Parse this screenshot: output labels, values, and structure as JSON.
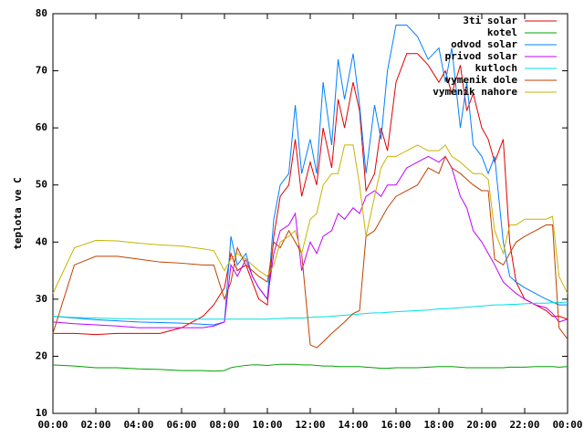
{
  "chart_data": {
    "type": "line",
    "ylabel": "teplota ve C",
    "x": [
      0,
      1,
      2,
      3,
      4,
      5,
      6,
      7,
      7.5,
      8,
      8.3,
      8.6,
      9,
      9.3,
      9.6,
      10,
      10.3,
      10.6,
      11,
      11.3,
      11.6,
      12,
      12.3,
      12.6,
      13,
      13.3,
      13.6,
      14,
      14.3,
      14.6,
      15,
      15.3,
      15.6,
      16,
      16.5,
      17,
      17.5,
      18,
      18.3,
      18.6,
      19,
      19.3,
      19.6,
      20,
      20.3,
      20.6,
      21,
      21.3,
      21.6,
      22,
      22.5,
      23,
      23.3,
      23.6,
      24
    ],
    "series": [
      {
        "name": "3ti solar",
        "color": "#e00000",
        "values": [
          24,
          24,
          23.8,
          24,
          24,
          24,
          25,
          27,
          29,
          32,
          38,
          35,
          36,
          33,
          30,
          29,
          41,
          48,
          50,
          58,
          48,
          54,
          50,
          60,
          53,
          65,
          60,
          68,
          63,
          49,
          52,
          60,
          56,
          68,
          73,
          73,
          71,
          68,
          70,
          66,
          71,
          63,
          66,
          60,
          58,
          54,
          58,
          40,
          33,
          30,
          29,
          28,
          27,
          27,
          26.5
        ]
      },
      {
        "name": "kotel",
        "color": "#00a000",
        "values": [
          18.5,
          18.3,
          18,
          18,
          17.8,
          17.7,
          17.5,
          17.5,
          17.4,
          17.5,
          18,
          18.2,
          18.4,
          18.5,
          18.5,
          18.4,
          18.5,
          18.6,
          18.6,
          18.6,
          18.5,
          18.5,
          18.4,
          18.3,
          18.3,
          18.2,
          18.2,
          18.2,
          18.2,
          18.1,
          18,
          17.9,
          17.9,
          18,
          18,
          18,
          18.1,
          18.2,
          18.2,
          18.2,
          18.1,
          18,
          18,
          18,
          18,
          18,
          18,
          18.1,
          18.1,
          18.1,
          18.2,
          18.2,
          18.2,
          18.1,
          18.2
        ]
      },
      {
        "name": "odvod solar",
        "color": "#0080ff",
        "values": [
          27,
          26.7,
          26.4,
          26.2,
          26,
          25.9,
          25.8,
          25.6,
          25.5,
          26,
          41,
          36,
          38,
          34,
          32,
          30,
          44,
          50,
          52,
          64,
          52,
          58,
          52,
          68,
          57,
          72,
          65,
          73,
          64,
          52,
          64,
          58,
          70,
          78,
          78,
          76,
          72,
          74,
          68,
          74,
          60,
          68,
          57,
          55,
          52,
          55,
          40,
          34,
          33,
          32,
          31,
          30,
          29.5,
          29,
          29
        ]
      },
      {
        "name": "privod solar",
        "color": "#c000ff",
        "values": [
          26,
          25.7,
          25.5,
          25.3,
          25,
          25,
          25,
          25,
          25.3,
          26,
          36,
          34,
          37,
          34,
          32,
          30,
          38,
          42,
          43,
          45,
          35,
          40,
          38,
          41,
          42,
          45,
          44,
          46,
          45,
          48,
          49,
          48,
          50,
          50,
          53,
          54,
          55,
          54,
          55,
          53,
          48,
          46,
          42,
          40,
          38,
          36,
          33,
          32,
          31,
          30,
          29,
          28.5,
          27.5,
          26,
          26.5
        ]
      },
      {
        "name": "kutloch",
        "color": "#00e0e0",
        "values": [
          27,
          26.8,
          26.7,
          26.6,
          26.5,
          26.5,
          26.5,
          26.5,
          26.5,
          26.5,
          26.5,
          26.5,
          26.5,
          26.5,
          26.5,
          26.5,
          26.6,
          26.6,
          26.7,
          26.7,
          26.7,
          26.8,
          26.9,
          26.9,
          27,
          27.1,
          27.2,
          27.3,
          27.4,
          27.5,
          27.6,
          27.6,
          27.7,
          27.8,
          27.9,
          28,
          28.1,
          28.3,
          28.3,
          28.4,
          28.5,
          28.6,
          28.7,
          28.8,
          28.9,
          29,
          29,
          29.1,
          29.1,
          29.2,
          29.3,
          29.3,
          29.4,
          29.4,
          29.5
        ]
      },
      {
        "name": "vymenik dole",
        "color": "#c04000",
        "values": [
          24,
          36,
          37.5,
          37.5,
          37,
          36.5,
          36.3,
          36,
          36,
          30,
          33,
          39,
          36,
          35,
          34,
          33,
          40,
          39,
          42,
          40,
          38,
          22,
          21.5,
          22.5,
          24,
          25,
          26,
          27.5,
          28,
          41,
          42,
          44,
          46,
          48,
          49,
          50,
          53,
          52,
          55,
          53,
          52,
          51,
          50,
          49,
          49,
          37,
          36,
          38,
          40,
          41,
          42,
          43,
          43,
          25,
          23
        ]
      },
      {
        "name": "vymenik nahore",
        "color": "#c8b400",
        "values": [
          31,
          39,
          40.3,
          40.2,
          39.8,
          39.5,
          39.3,
          38.8,
          38.5,
          35,
          37,
          38,
          37,
          36,
          35,
          34,
          36,
          40,
          41,
          42,
          38,
          44,
          45,
          50,
          52,
          52,
          57,
          57,
          50,
          41,
          48,
          53,
          55,
          55,
          56,
          57,
          56,
          56,
          57,
          55,
          54,
          53,
          52,
          52,
          51,
          42,
          38,
          43,
          43,
          44,
          44,
          44,
          44.5,
          34,
          31
        ]
      }
    ],
    "xlim": [
      0,
      24
    ],
    "xticks": [
      {
        "value": 0,
        "label": "00:00"
      },
      {
        "value": 2,
        "label": "02:00"
      },
      {
        "value": 4,
        "label": "04:00"
      },
      {
        "value": 6,
        "label": "06:00"
      },
      {
        "value": 8,
        "label": "08:00"
      },
      {
        "value": 10,
        "label": "10:00"
      },
      {
        "value": 12,
        "label": "12:00"
      },
      {
        "value": 14,
        "label": "14:00"
      },
      {
        "value": 16,
        "label": "16:00"
      },
      {
        "value": 18,
        "label": "18:00"
      },
      {
        "value": 20,
        "label": "20:00"
      },
      {
        "value": 22,
        "label": "22:00"
      },
      {
        "value": 24,
        "label": "00:00"
      }
    ],
    "ylim": [
      10,
      80
    ],
    "yticks": [
      10,
      20,
      30,
      40,
      50,
      60,
      70,
      80
    ],
    "legend": "top-right",
    "grid": false
  }
}
